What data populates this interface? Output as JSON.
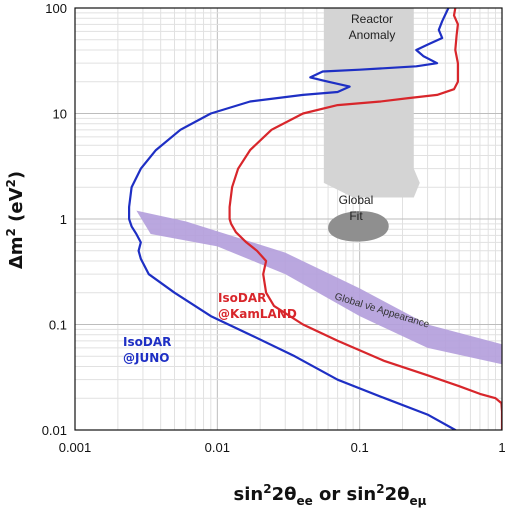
{
  "chart_data": {
    "type": "line",
    "x_scale": "log",
    "y_scale": "log",
    "xlim": [
      0.001,
      1
    ],
    "ylim": [
      0.01,
      100
    ],
    "x_ticks": [
      "0.001",
      "0.01",
      "0.1",
      "1"
    ],
    "y_ticks": [
      "0.01",
      "0.1",
      "1",
      "10",
      "100"
    ],
    "xlabel": {
      "base": "sin",
      "sup1": "2",
      "mid": "2θ",
      "sub1": "ee",
      "or": " or ",
      "base2": "sin",
      "sup2": "2",
      "mid2": "2θ",
      "sub2": "eμ"
    },
    "ylabel": {
      "base": "Δm",
      "sup": "2",
      "unit_open": " (eV",
      "unit_sup": "2",
      "unit_close": ")"
    },
    "grid": true,
    "series": [
      {
        "name": "IsoDAR @JUNO",
        "label_lines": [
          "IsoDAR",
          "@JUNO"
        ],
        "color": "#1e2fc4",
        "points": [
          [
            0.47,
            0.01
          ],
          [
            0.3,
            0.014
          ],
          [
            0.15,
            0.02
          ],
          [
            0.07,
            0.03
          ],
          [
            0.035,
            0.05
          ],
          [
            0.017,
            0.08
          ],
          [
            0.009,
            0.12
          ],
          [
            0.005,
            0.2
          ],
          [
            0.0033,
            0.3
          ],
          [
            0.0029,
            0.42
          ],
          [
            0.0028,
            0.5
          ],
          [
            0.0029,
            0.6
          ],
          [
            0.0027,
            0.72
          ],
          [
            0.0025,
            0.85
          ],
          [
            0.0024,
            1.0
          ],
          [
            0.0024,
            1.3
          ],
          [
            0.0025,
            2
          ],
          [
            0.0029,
            3
          ],
          [
            0.0037,
            4.5
          ],
          [
            0.0055,
            7
          ],
          [
            0.009,
            10
          ],
          [
            0.017,
            13
          ],
          [
            0.04,
            15
          ],
          [
            0.07,
            16
          ],
          [
            0.085,
            18
          ],
          [
            0.06,
            20
          ],
          [
            0.045,
            22
          ],
          [
            0.055,
            25
          ],
          [
            0.1,
            26
          ],
          [
            0.25,
            28
          ],
          [
            0.35,
            30
          ],
          [
            0.28,
            35
          ],
          [
            0.25,
            40
          ],
          [
            0.3,
            45
          ],
          [
            0.38,
            52
          ],
          [
            0.36,
            62
          ],
          [
            0.38,
            75
          ],
          [
            0.42,
            100
          ]
        ]
      },
      {
        "name": "IsoDAR @KamLAND",
        "label_lines": [
          "IsoDAR",
          "@KamLAND"
        ],
        "color": "#d8262b",
        "points": [
          [
            1.0,
            0.01
          ],
          [
            1.0,
            0.015
          ],
          [
            0.99,
            0.018
          ],
          [
            0.9,
            0.02
          ],
          [
            0.7,
            0.022
          ],
          [
            0.5,
            0.026
          ],
          [
            0.3,
            0.033
          ],
          [
            0.15,
            0.045
          ],
          [
            0.07,
            0.07
          ],
          [
            0.04,
            0.1
          ],
          [
            0.025,
            0.15
          ],
          [
            0.022,
            0.2
          ],
          [
            0.021,
            0.3
          ],
          [
            0.022,
            0.4
          ],
          [
            0.019,
            0.5
          ],
          [
            0.016,
            0.6
          ],
          [
            0.0135,
            0.75
          ],
          [
            0.0125,
            0.9
          ],
          [
            0.0122,
            1.0
          ],
          [
            0.0122,
            1.3
          ],
          [
            0.0127,
            2
          ],
          [
            0.014,
            3
          ],
          [
            0.017,
            4.5
          ],
          [
            0.024,
            7
          ],
          [
            0.04,
            10
          ],
          [
            0.07,
            12
          ],
          [
            0.14,
            13
          ],
          [
            0.22,
            14
          ],
          [
            0.35,
            15
          ],
          [
            0.46,
            17
          ],
          [
            0.49,
            20
          ],
          [
            0.49,
            30
          ],
          [
            0.47,
            40
          ],
          [
            0.48,
            55
          ],
          [
            0.49,
            70
          ],
          [
            0.46,
            85
          ],
          [
            0.47,
            100
          ]
        ]
      }
    ],
    "regions": [
      {
        "name": "Reactor Anomaly",
        "label_lines": [
          "Reactor",
          "Anomaly"
        ],
        "color": "#d4d4d4",
        "x": [
          0.056,
          0.24
        ],
        "y": [
          1.6,
          100
        ]
      },
      {
        "name": "Global Fit",
        "label_lines": [
          "Global",
          "Fit"
        ],
        "color": "#8f8f8f",
        "center": [
          0.087,
          0.82
        ],
        "x_halfwidth": [
          0.06,
          0.16
        ],
        "y": [
          0.55,
          1.3
        ]
      },
      {
        "name": "Global νe Appearance",
        "label": "Global  ν̄e  Appearance",
        "color": "#b39ddb",
        "upper": [
          [
            0.0027,
            1.2
          ],
          [
            0.006,
            0.95
          ],
          [
            0.03,
            0.48
          ],
          [
            0.1,
            0.22
          ],
          [
            0.3,
            0.1
          ],
          [
            1.0,
            0.065
          ]
        ],
        "lower": [
          [
            0.0034,
            0.72
          ],
          [
            0.01,
            0.55
          ],
          [
            0.03,
            0.3
          ],
          [
            0.1,
            0.12
          ],
          [
            0.3,
            0.06
          ],
          [
            1.0,
            0.042
          ]
        ]
      }
    ]
  }
}
